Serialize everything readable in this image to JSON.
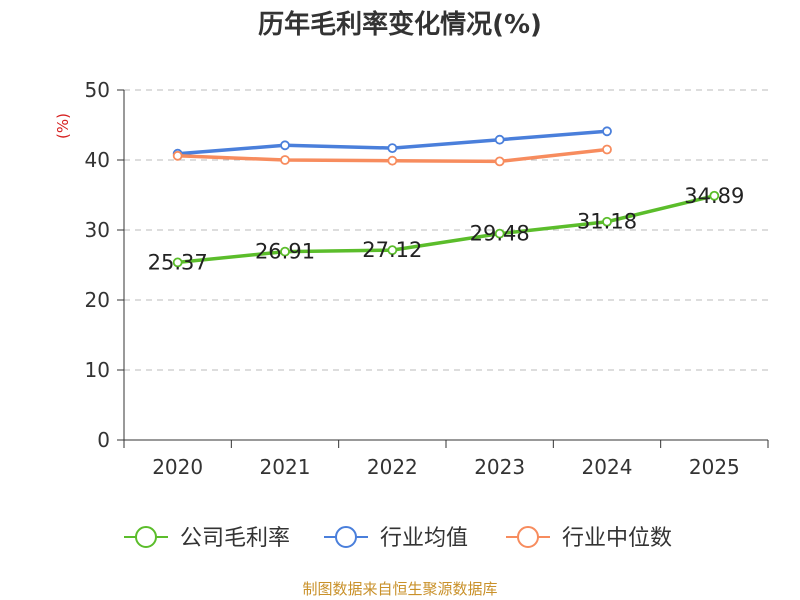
{
  "chart_data": {
    "type": "line",
    "title": "历年毛利率变化情况(%)",
    "ylabel": "(%)",
    "xlabel": "",
    "categories": [
      "2020",
      "2021",
      "2022",
      "2023",
      "2024",
      "2025"
    ],
    "ylim": [
      0,
      50
    ],
    "yticks": [
      0,
      10,
      20,
      30,
      40,
      50
    ],
    "grid": true,
    "legend_position": "bottom",
    "series": [
      {
        "name": "公司毛利率",
        "color": "#5bbd2b",
        "values": [
          25.37,
          26.91,
          27.12,
          29.48,
          31.18,
          34.89
        ],
        "labels": [
          "25.37",
          "26.91",
          "27.12",
          "29.48",
          "31.18",
          "34.89"
        ]
      },
      {
        "name": "行业均值",
        "color": "#4a7fdb",
        "values": [
          40.9,
          42.1,
          41.7,
          42.9,
          44.1,
          null
        ]
      },
      {
        "name": "行业中位数",
        "color": "#f78c5e",
        "values": [
          40.6,
          40.0,
          39.9,
          39.8,
          41.5,
          null
        ]
      }
    ]
  },
  "source_note": "制图数据来自恒生聚源数据库",
  "colors": {
    "unit_label": "#d62020",
    "source_note": "#c9912a",
    "axis": "#333333",
    "grid": "#bbbbbb"
  }
}
